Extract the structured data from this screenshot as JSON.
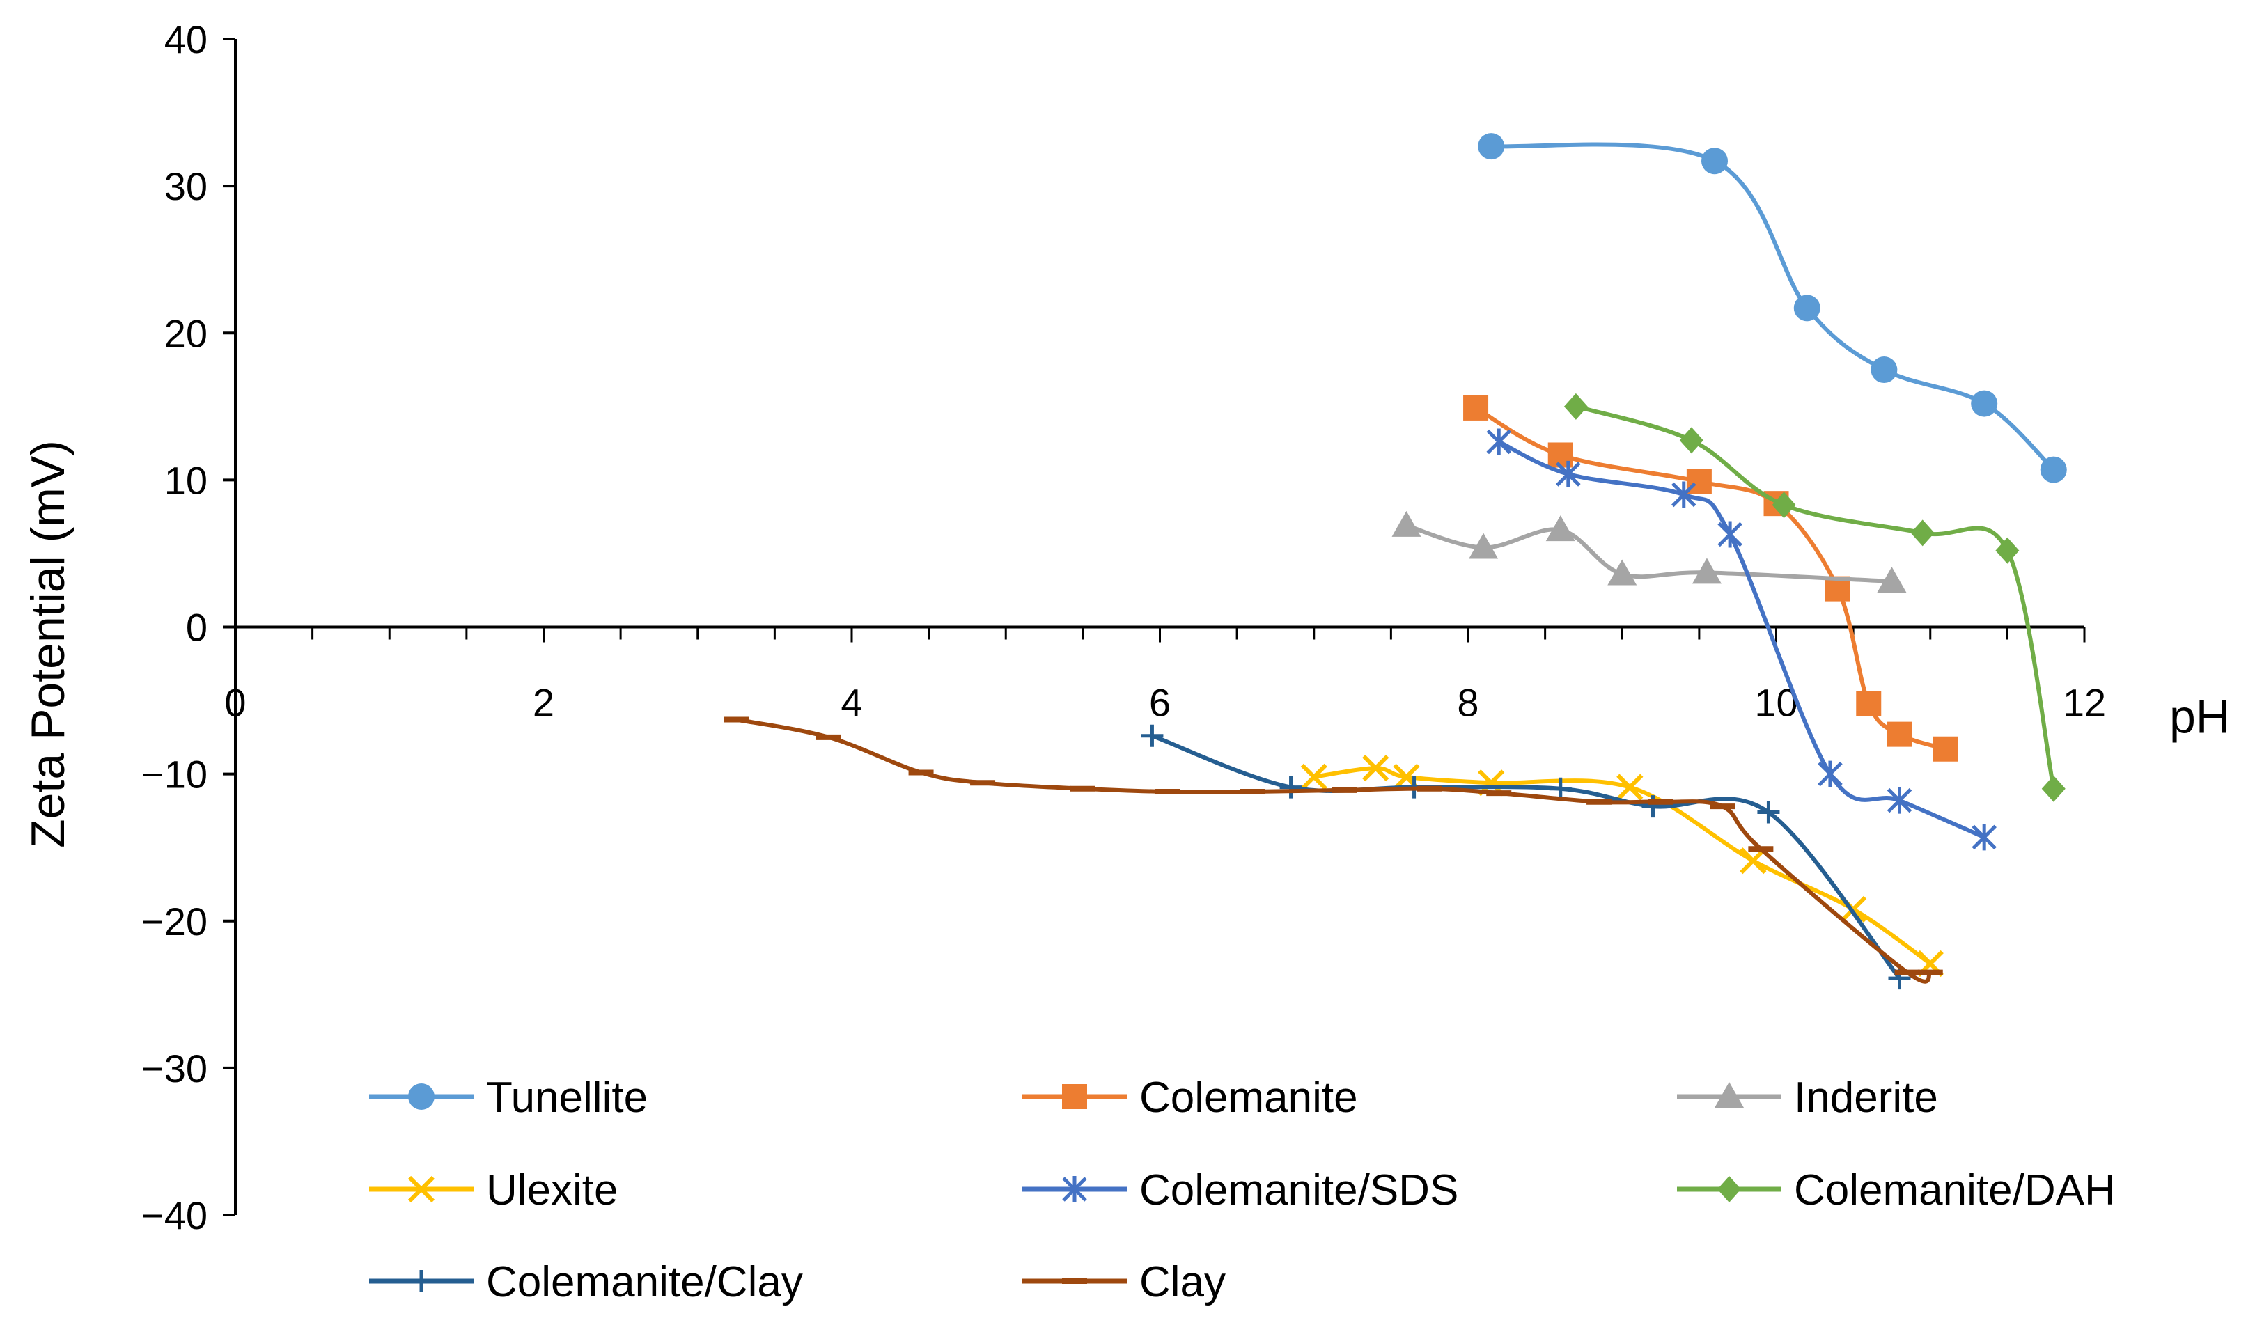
{
  "chart_data": {
    "type": "line",
    "title": "",
    "xlabel": "pH",
    "ylabel": "Zeta Potential (mV)",
    "xlim": [
      0,
      12
    ],
    "ylim": [
      -40,
      40
    ],
    "xticks": [
      0,
      2,
      4,
      6,
      8,
      10,
      12
    ],
    "yticks": [
      40,
      30,
      20,
      10,
      0,
      -10,
      -20,
      -30,
      -40
    ],
    "xtick_labels": [
      "0",
      "2",
      "4",
      "6",
      "8",
      "10",
      "12"
    ],
    "ytick_labels": [
      "40",
      "30",
      "20",
      "10",
      "0",
      "−10",
      "−20",
      "−30",
      "−40"
    ],
    "grid": false,
    "legend_position": "bottom",
    "series": [
      {
        "name": "Tunellite",
        "color": "#5B9BD5",
        "marker": "circle",
        "x": [
          8.15,
          9.6,
          10.2,
          10.7,
          11.35,
          11.8
        ],
        "y": [
          32.7,
          31.7,
          21.7,
          17.5,
          15.2,
          10.7
        ]
      },
      {
        "name": "Colemanite",
        "color": "#ED7D31",
        "marker": "square",
        "x": [
          8.05,
          8.6,
          9.5,
          10.0,
          10.4,
          10.6,
          10.8,
          11.1
        ],
        "y": [
          14.9,
          11.7,
          9.9,
          8.4,
          2.6,
          -5.2,
          -7.3,
          -8.3
        ]
      },
      {
        "name": "Inderite",
        "color": "#A5A5A5",
        "marker": "triangle",
        "x": [
          7.6,
          8.1,
          8.6,
          9.0,
          9.55,
          10.75
        ],
        "y": [
          6.9,
          5.4,
          6.6,
          3.6,
          3.7,
          3.1
        ]
      },
      {
        "name": "Ulexite",
        "color": "#FFC000",
        "marker": "x",
        "x": [
          7.0,
          7.4,
          7.6,
          8.15,
          9.05,
          9.85,
          10.5,
          11.0
        ],
        "y": [
          -10.2,
          -9.6,
          -10.2,
          -10.6,
          -10.9,
          -15.9,
          -19.2,
          -22.9
        ]
      },
      {
        "name": "Colemanite/SDS",
        "color": "#4472C4",
        "marker": "asterisk",
        "x": [
          8.2,
          8.65,
          9.4,
          9.7,
          10.35,
          10.8,
          11.35
        ],
        "y": [
          12.6,
          10.4,
          9.0,
          6.3,
          -10.0,
          -11.8,
          -14.3
        ]
      },
      {
        "name": "Colemanite/DAH",
        "color": "#70AD47",
        "marker": "diamond",
        "x": [
          8.7,
          9.45,
          10.05,
          10.95,
          11.5,
          11.8
        ],
        "y": [
          15.0,
          12.7,
          8.3,
          6.4,
          5.2,
          -11.0
        ]
      },
      {
        "name": "Colemanite/Clay",
        "color": "#255E91",
        "marker": "plus",
        "x": [
          5.95,
          6.85,
          7.65,
          8.6,
          9.2,
          9.95,
          10.8
        ],
        "y": [
          -7.4,
          -10.9,
          -10.9,
          -11.0,
          -12.2,
          -12.6,
          -23.9
        ]
      },
      {
        "name": "Clay",
        "color": "#9E480E",
        "marker": "dash",
        "x": [
          3.25,
          3.85,
          4.45,
          4.85,
          5.5,
          6.05,
          6.6,
          7.2,
          7.75,
          8.2,
          8.85,
          9.25,
          9.65,
          9.9,
          10.85,
          11.0
        ],
        "y": [
          -6.3,
          -7.5,
          -9.9,
          -10.6,
          -11.0,
          -11.2,
          -11.2,
          -11.1,
          -11.0,
          -11.3,
          -11.9,
          -11.9,
          -12.2,
          -15.1,
          -23.5,
          -23.5
        ]
      }
    ]
  }
}
